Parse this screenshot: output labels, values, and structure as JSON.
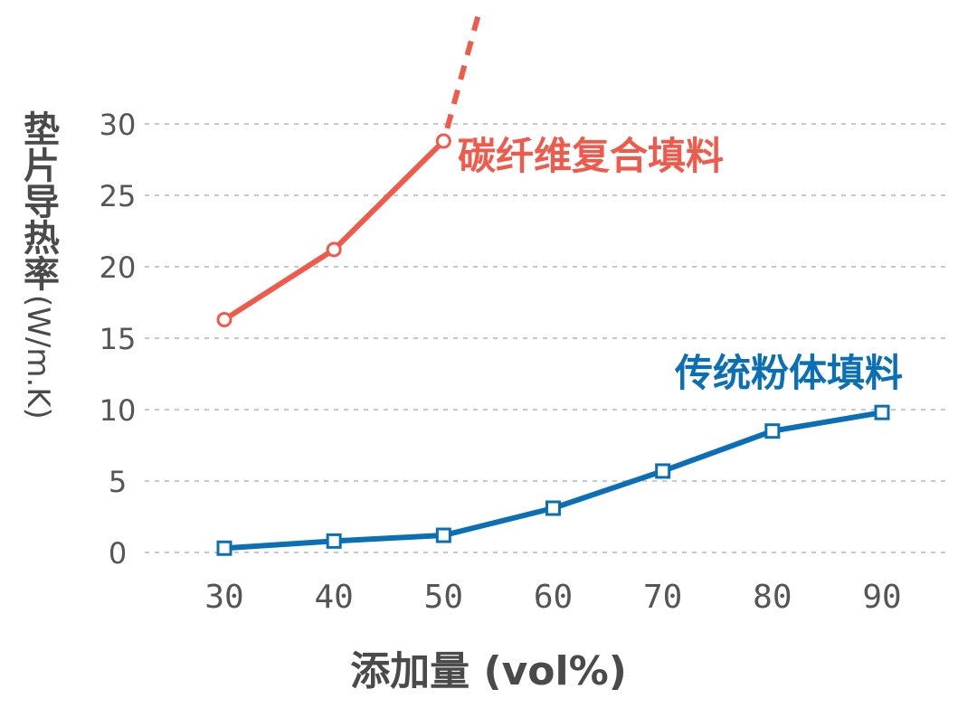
{
  "chart_data": {
    "type": "line",
    "xlabel": "添加量 (vol%)",
    "ylabel_text": "垫片导热率",
    "ylabel_unit": "(W/m.K)",
    "x": [
      30,
      40,
      50,
      60,
      70,
      80,
      90
    ],
    "yticks": [
      "0",
      "5",
      "10",
      "15",
      "20",
      "25",
      "30"
    ],
    "xticks": [
      "30",
      "40",
      "50",
      "60",
      "70",
      "80",
      "90"
    ],
    "ylim": [
      0,
      30
    ],
    "grid": true,
    "series": [
      {
        "name": "碳纤维复合填料",
        "color": "#f05a4a",
        "marker": "circle",
        "points": [
          [
            30,
            16.3
          ],
          [
            40,
            21.2
          ],
          [
            50,
            28.8
          ]
        ],
        "extrapolation": "dashed-upward"
      },
      {
        "name": "传统粉体填料",
        "color": "#0a6fb5",
        "marker": "square",
        "points": [
          [
            30,
            0.3
          ],
          [
            40,
            0.8
          ],
          [
            50,
            1.2
          ],
          [
            60,
            3.1
          ],
          [
            70,
            5.7
          ],
          [
            80,
            8.5
          ],
          [
            90,
            9.8
          ]
        ]
      }
    ]
  }
}
